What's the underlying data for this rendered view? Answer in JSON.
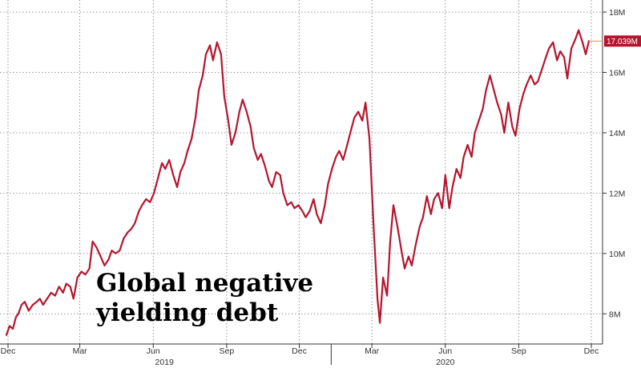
{
  "chart_data": {
    "type": "line",
    "annotation": "Global negative yielding debt",
    "ylim": [
      7,
      18.4
    ],
    "y_ticks": [
      8,
      10,
      12,
      14,
      16,
      18
    ],
    "y_tick_labels": [
      "8M",
      "10M",
      "12M",
      "14M",
      "16M",
      "18M"
    ],
    "x_tick_labels": [
      "Dec",
      "Mar",
      "Jun",
      "Sep",
      "Dec",
      "Mar",
      "Jun",
      "Sep",
      "Dec"
    ],
    "x_tick_dates": [
      "2018-12-01",
      "2019-03-01",
      "2019-06-01",
      "2019-09-01",
      "2019-12-01",
      "2020-03-01",
      "2020-06-01",
      "2020-09-01",
      "2020-12-01"
    ],
    "year_labels": [
      "2019",
      "2020"
    ],
    "year_dates": [
      "2019-06-15",
      "2020-06-01"
    ],
    "grid": true,
    "last_value_label": "17.039M",
    "series": [
      {
        "color": "#b5152d",
        "points": [
          [
            "2018-11-29",
            7.3
          ],
          [
            "2018-12-03",
            7.6
          ],
          [
            "2018-12-07",
            7.5
          ],
          [
            "2018-12-11",
            7.9
          ],
          [
            "2018-12-14",
            8.0
          ],
          [
            "2018-12-18",
            8.3
          ],
          [
            "2018-12-22",
            8.4
          ],
          [
            "2018-12-27",
            8.1
          ],
          [
            "2019-01-01",
            8.3
          ],
          [
            "2019-01-06",
            8.4
          ],
          [
            "2019-01-10",
            8.5
          ],
          [
            "2019-01-14",
            8.3
          ],
          [
            "2019-01-19",
            8.5
          ],
          [
            "2019-01-24",
            8.7
          ],
          [
            "2019-01-29",
            8.6
          ],
          [
            "2019-02-03",
            8.9
          ],
          [
            "2019-02-08",
            8.7
          ],
          [
            "2019-02-12",
            9.0
          ],
          [
            "2019-02-17",
            8.9
          ],
          [
            "2019-02-21",
            8.5
          ],
          [
            "2019-02-26",
            9.2
          ],
          [
            "2019-03-03",
            9.4
          ],
          [
            "2019-03-08",
            9.3
          ],
          [
            "2019-03-13",
            9.5
          ],
          [
            "2019-03-17",
            10.4
          ],
          [
            "2019-03-22",
            10.2
          ],
          [
            "2019-03-27",
            9.9
          ],
          [
            "2019-04-01",
            9.6
          ],
          [
            "2019-04-06",
            9.8
          ],
          [
            "2019-04-10",
            10.1
          ],
          [
            "2019-04-15",
            10.0
          ],
          [
            "2019-04-20",
            10.1
          ],
          [
            "2019-04-25",
            10.5
          ],
          [
            "2019-04-30",
            10.7
          ],
          [
            "2019-05-04",
            10.8
          ],
          [
            "2019-05-09",
            11.0
          ],
          [
            "2019-05-14",
            11.4
          ],
          [
            "2019-05-18",
            11.6
          ],
          [
            "2019-05-23",
            11.8
          ],
          [
            "2019-05-28",
            11.7
          ],
          [
            "2019-06-02",
            12.0
          ],
          [
            "2019-06-07",
            12.5
          ],
          [
            "2019-06-12",
            13.0
          ],
          [
            "2019-06-16",
            12.8
          ],
          [
            "2019-06-21",
            13.1
          ],
          [
            "2019-06-26",
            12.6
          ],
          [
            "2019-07-01",
            12.2
          ],
          [
            "2019-07-05",
            12.7
          ],
          [
            "2019-07-10",
            13.0
          ],
          [
            "2019-07-14",
            13.4
          ],
          [
            "2019-07-19",
            13.8
          ],
          [
            "2019-07-24",
            14.5
          ],
          [
            "2019-07-28",
            15.4
          ],
          [
            "2019-08-02",
            15.9
          ],
          [
            "2019-08-06",
            16.6
          ],
          [
            "2019-08-11",
            16.9
          ],
          [
            "2019-08-15",
            16.4
          ],
          [
            "2019-08-20",
            17.0
          ],
          [
            "2019-08-25",
            16.6
          ],
          [
            "2019-08-29",
            15.2
          ],
          [
            "2019-09-03",
            14.4
          ],
          [
            "2019-09-07",
            13.6
          ],
          [
            "2019-09-12",
            14.0
          ],
          [
            "2019-09-17",
            14.7
          ],
          [
            "2019-09-21",
            15.1
          ],
          [
            "2019-09-26",
            14.7
          ],
          [
            "2019-10-01",
            14.2
          ],
          [
            "2019-10-05",
            13.5
          ],
          [
            "2019-10-10",
            13.1
          ],
          [
            "2019-10-14",
            13.3
          ],
          [
            "2019-10-19",
            12.9
          ],
          [
            "2019-10-24",
            12.4
          ],
          [
            "2019-10-28",
            12.2
          ],
          [
            "2019-11-02",
            12.7
          ],
          [
            "2019-11-07",
            12.6
          ],
          [
            "2019-11-11",
            12.0
          ],
          [
            "2019-11-16",
            11.6
          ],
          [
            "2019-11-21",
            11.7
          ],
          [
            "2019-11-25",
            11.5
          ],
          [
            "2019-11-30",
            11.6
          ],
          [
            "2019-12-05",
            11.4
          ],
          [
            "2019-12-09",
            11.2
          ],
          [
            "2019-12-14",
            11.4
          ],
          [
            "2019-12-19",
            11.8
          ],
          [
            "2019-12-23",
            11.3
          ],
          [
            "2019-12-28",
            11.0
          ],
          [
            "2020-01-02",
            11.6
          ],
          [
            "2020-01-06",
            12.3
          ],
          [
            "2020-01-11",
            12.8
          ],
          [
            "2020-01-16",
            13.2
          ],
          [
            "2020-01-20",
            13.4
          ],
          [
            "2020-01-25",
            13.1
          ],
          [
            "2020-01-30",
            13.6
          ],
          [
            "2020-02-04",
            14.1
          ],
          [
            "2020-02-08",
            14.5
          ],
          [
            "2020-02-13",
            14.7
          ],
          [
            "2020-02-18",
            14.4
          ],
          [
            "2020-02-22",
            15.0
          ],
          [
            "2020-02-27",
            13.8
          ],
          [
            "2020-03-03",
            11.0
          ],
          [
            "2020-03-08",
            8.5
          ],
          [
            "2020-03-11",
            7.7
          ],
          [
            "2020-03-15",
            9.2
          ],
          [
            "2020-03-20",
            8.6
          ],
          [
            "2020-03-24",
            10.4
          ],
          [
            "2020-03-28",
            11.6
          ],
          [
            "2020-04-02",
            10.9
          ],
          [
            "2020-04-07",
            10.1
          ],
          [
            "2020-04-11",
            9.5
          ],
          [
            "2020-04-16",
            9.9
          ],
          [
            "2020-04-20",
            9.6
          ],
          [
            "2020-04-25",
            10.3
          ],
          [
            "2020-04-30",
            10.9
          ],
          [
            "2020-05-04",
            11.2
          ],
          [
            "2020-05-09",
            11.9
          ],
          [
            "2020-05-14",
            11.3
          ],
          [
            "2020-05-18",
            11.8
          ],
          [
            "2020-05-23",
            12.0
          ],
          [
            "2020-05-28",
            11.5
          ],
          [
            "2020-06-01",
            12.6
          ],
          [
            "2020-06-06",
            11.5
          ],
          [
            "2020-06-10",
            12.2
          ],
          [
            "2020-06-15",
            12.8
          ],
          [
            "2020-06-20",
            12.5
          ],
          [
            "2020-06-24",
            13.2
          ],
          [
            "2020-06-29",
            13.6
          ],
          [
            "2020-07-04",
            13.2
          ],
          [
            "2020-07-08",
            14.0
          ],
          [
            "2020-07-13",
            14.4
          ],
          [
            "2020-07-18",
            14.8
          ],
          [
            "2020-07-22",
            15.4
          ],
          [
            "2020-07-27",
            15.9
          ],
          [
            "2020-08-01",
            15.4
          ],
          [
            "2020-08-05",
            15.0
          ],
          [
            "2020-08-10",
            14.6
          ],
          [
            "2020-08-14",
            14.0
          ],
          [
            "2020-08-19",
            15.0
          ],
          [
            "2020-08-24",
            14.2
          ],
          [
            "2020-08-28",
            13.9
          ],
          [
            "2020-09-02",
            14.8
          ],
          [
            "2020-09-07",
            15.3
          ],
          [
            "2020-09-11",
            15.6
          ],
          [
            "2020-09-16",
            15.9
          ],
          [
            "2020-09-21",
            15.6
          ],
          [
            "2020-09-25",
            15.7
          ],
          [
            "2020-09-30",
            16.1
          ],
          [
            "2020-10-05",
            16.5
          ],
          [
            "2020-10-09",
            16.8
          ],
          [
            "2020-10-14",
            17.0
          ],
          [
            "2020-10-19",
            16.4
          ],
          [
            "2020-10-23",
            16.7
          ],
          [
            "2020-10-28",
            16.5
          ],
          [
            "2020-11-01",
            15.8
          ],
          [
            "2020-11-06",
            16.8
          ],
          [
            "2020-11-11",
            17.1
          ],
          [
            "2020-11-15",
            17.4
          ],
          [
            "2020-11-20",
            17.0
          ],
          [
            "2020-11-24",
            16.6
          ],
          [
            "2020-11-28",
            17.039
          ]
        ]
      }
    ]
  }
}
